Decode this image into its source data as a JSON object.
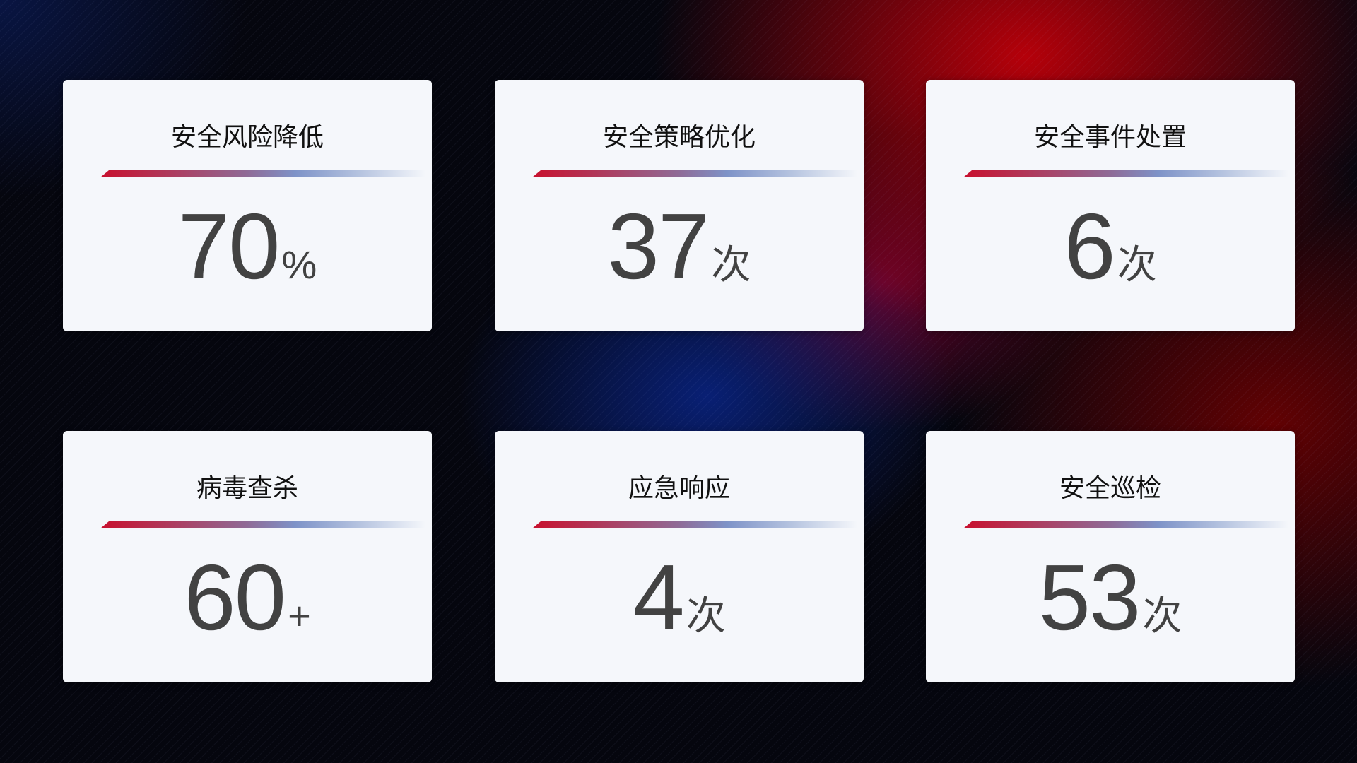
{
  "cards": [
    {
      "title": "安全风险降低",
      "value": "70",
      "unit": "%"
    },
    {
      "title": "安全策略优化",
      "value": "37",
      "unit": "次"
    },
    {
      "title": "安全事件处置",
      "value": "6",
      "unit": "次"
    },
    {
      "title": "病毒查杀",
      "value": "60",
      "unit": "+"
    },
    {
      "title": "应急响应",
      "value": "4",
      "unit": "次"
    },
    {
      "title": "安全巡检",
      "value": "53",
      "unit": "次"
    }
  ],
  "colors": {
    "accent_red": "#c8102e",
    "accent_blue": "#7e93c8",
    "card_bg": "#f5f7fb",
    "value_text": "#424242"
  }
}
